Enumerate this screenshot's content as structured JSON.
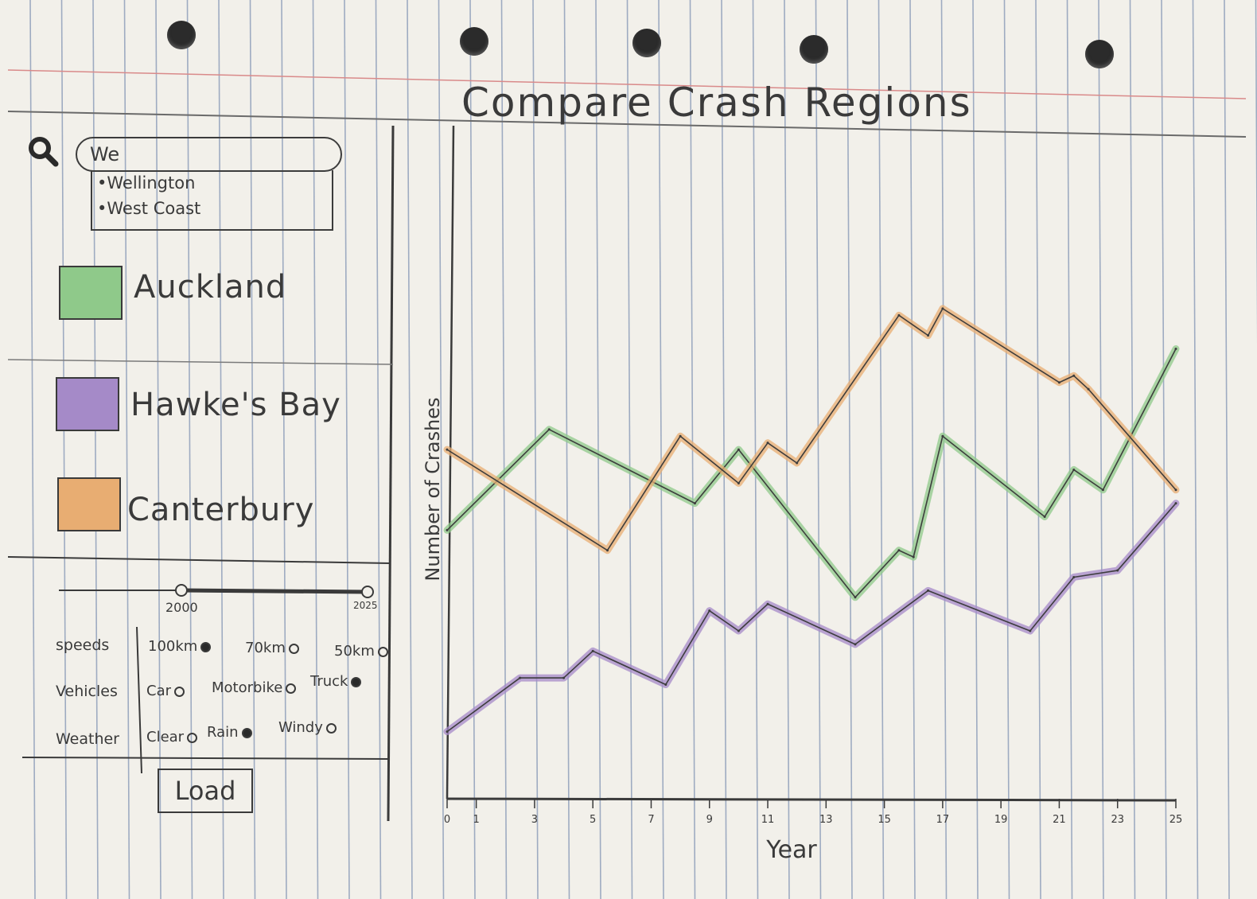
{
  "title": "Compare Crash Regions",
  "search": {
    "value": "We",
    "suggestions": [
      "•Wellington",
      "•West Coast"
    ]
  },
  "legend": [
    {
      "label": "Auckland",
      "color": "#8fc98a"
    },
    {
      "label": "Hawke's Bay",
      "color": "#a58ac8"
    },
    {
      "label": "Canterbury",
      "color": "#e8ad72"
    }
  ],
  "year_slider": {
    "min_label": "2000",
    "max_label": "2025"
  },
  "filters": {
    "speeds": {
      "label": "speeds",
      "options": [
        "100km",
        "70km",
        "50km"
      ],
      "selected": [
        true,
        false,
        false
      ]
    },
    "vehicles": {
      "label": "Vehicles",
      "options": [
        "Car",
        "Motorbike",
        "Truck"
      ],
      "selected": [
        false,
        false,
        true
      ]
    },
    "weather": {
      "label": "Weather",
      "options": [
        "Clear",
        "Rain",
        "Windy"
      ],
      "selected": [
        false,
        true,
        false
      ]
    }
  },
  "load_label": "Load",
  "chart_data": {
    "type": "line",
    "title": "Compare Crash Regions",
    "xlabel": "Year",
    "ylabel": "Number of Crashes",
    "x_ticks": [
      "0",
      "1",
      "3",
      "5",
      "7",
      "9",
      "11",
      "13",
      "15",
      "17",
      "19",
      "21",
      "23",
      "25"
    ],
    "xlim": [
      0,
      25
    ],
    "ylim": [
      0,
      100
    ],
    "series": [
      {
        "name": "Auckland",
        "color": "#8fc98a",
        "points": [
          [
            0,
            40
          ],
          [
            3.5,
            55
          ],
          [
            8.5,
            44
          ],
          [
            10,
            52
          ],
          [
            14,
            30
          ],
          [
            15.5,
            37
          ],
          [
            16,
            36
          ],
          [
            17,
            54
          ],
          [
            20.5,
            42
          ],
          [
            21.5,
            49
          ],
          [
            22.5,
            46
          ],
          [
            25,
            67
          ]
        ]
      },
      {
        "name": "Hawke's Bay",
        "color": "#a58ac8",
        "points": [
          [
            0,
            10
          ],
          [
            2.5,
            18
          ],
          [
            4,
            18
          ],
          [
            5,
            22
          ],
          [
            7.5,
            17
          ],
          [
            9,
            28
          ],
          [
            10,
            25
          ],
          [
            11,
            29
          ],
          [
            14,
            23
          ],
          [
            16.5,
            31
          ],
          [
            20,
            25
          ],
          [
            21.5,
            33
          ],
          [
            23,
            34
          ],
          [
            25,
            44
          ]
        ]
      },
      {
        "name": "Canterbury",
        "color": "#e8ad72",
        "points": [
          [
            0,
            52
          ],
          [
            5.5,
            37
          ],
          [
            8,
            54
          ],
          [
            10,
            47
          ],
          [
            11,
            53
          ],
          [
            12,
            50
          ],
          [
            15.5,
            72
          ],
          [
            16.5,
            69
          ],
          [
            17,
            73
          ],
          [
            21,
            62
          ],
          [
            21.5,
            63
          ],
          [
            22,
            61
          ],
          [
            25,
            46
          ]
        ]
      }
    ]
  }
}
